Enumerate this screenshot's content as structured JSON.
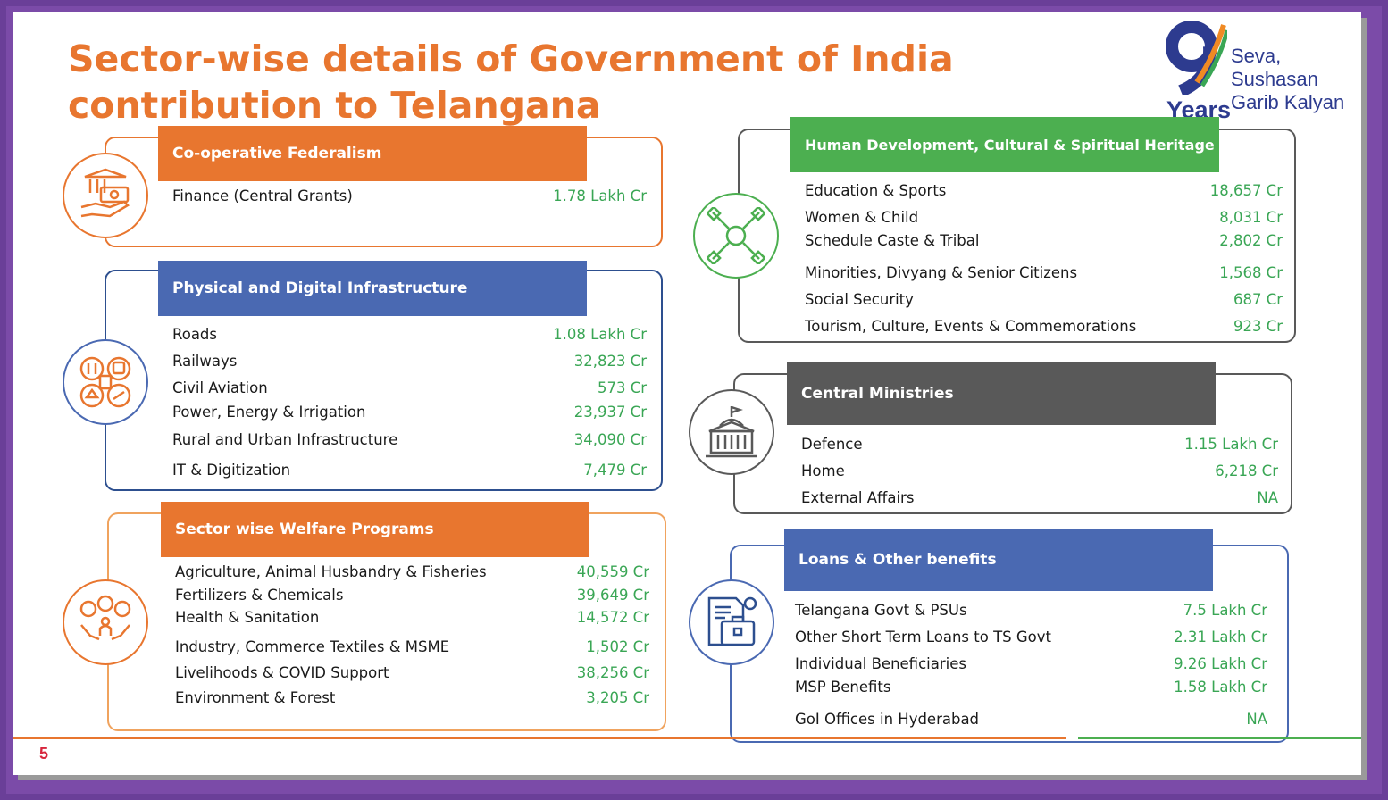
{
  "title": "Sector-wise details of Government of India contribution to Telangana",
  "logo": {
    "number": "9",
    "years": "Years",
    "line1": "Seva, Sushasan",
    "line2": "Garib Kalyan"
  },
  "page_number": "5",
  "colors": {
    "orange": "#e8762f",
    "blue": "#4a69b2",
    "green": "#4caf50",
    "gray": "#595959",
    "value": "#3aa655",
    "frame": "#6a3f98"
  },
  "cooperative": {
    "heading": "Co-operative Federalism",
    "icon": "money-hand-icon",
    "rows": [
      {
        "label": "Finance (Central Grants)",
        "value": "1.78 Lakh Cr"
      }
    ]
  },
  "infrastructure": {
    "heading": "Physical and Digital Infrastructure",
    "icon": "infrastructure-icon",
    "rows": [
      {
        "label": "Roads",
        "value": "1.08 Lakh Cr"
      },
      {
        "label": "Railways",
        "value": "32,823 Cr"
      },
      {
        "label": "Civil Aviation",
        "value": "573 Cr"
      },
      {
        "label": "Power, Energy & Irrigation",
        "value": "23,937 Cr"
      },
      {
        "label": "Rural and Urban Infrastructure",
        "value": "34,090 Cr"
      },
      {
        "label": "IT & Digitization",
        "value": "7,479 Cr"
      }
    ]
  },
  "welfare": {
    "heading": "Sector wise Welfare Programs",
    "icon": "welfare-hands-icon",
    "rows": [
      {
        "label": "Agriculture, Animal Husbandry & Fisheries",
        "value": "40,559 Cr"
      },
      {
        "label": "Fertilizers & Chemicals",
        "value": "39,649 Cr"
      },
      {
        "label": "Health & Sanitation",
        "value": "14,572 Cr"
      },
      {
        "label": "Industry, Commerce Textiles & MSME",
        "value": "1,502 Cr"
      },
      {
        "label": "Livelihoods & COVID Support",
        "value": "38,256 Cr"
      },
      {
        "label": "Environment & Forest",
        "value": "3,205 Cr"
      }
    ]
  },
  "human": {
    "heading": "Human Development, Cultural & Spiritual Heritage",
    "icon": "joined-hands-icon",
    "rows": [
      {
        "label": "Education & Sports",
        "value": "18,657 Cr"
      },
      {
        "label": "Women & Child",
        "value": "8,031 Cr"
      },
      {
        "label": "Schedule Caste & Tribal",
        "value": "2,802 Cr"
      },
      {
        "label": "Minorities, Divyang & Senior Citizens",
        "value": "1,568 Cr"
      },
      {
        "label": "Social Security",
        "value": "687 Cr"
      },
      {
        "label": "Tourism, Culture, Events & Commemorations",
        "value": "923 Cr"
      }
    ]
  },
  "central": {
    "heading": "Central Ministries",
    "icon": "government-building-icon",
    "rows": [
      {
        "label": "Defence",
        "value": "1.15 Lakh Cr"
      },
      {
        "label": "Home",
        "value": "6,218 Cr"
      },
      {
        "label": "External Affairs",
        "value": "NA"
      }
    ]
  },
  "loans": {
    "heading": "Loans & Other benefits",
    "icon": "briefcase-document-icon",
    "rows": [
      {
        "label": "Telangana Govt & PSUs",
        "value": "7.5 Lakh Cr"
      },
      {
        "label": "Other Short Term Loans to TS Govt",
        "value": "2.31 Lakh Cr"
      },
      {
        "label": "Individual Beneficiaries",
        "value": "9.26 Lakh Cr"
      },
      {
        "label": "MSP Benefits",
        "value": "1.58 Lakh Cr"
      },
      {
        "label": "GoI Offices in Hyderabad",
        "value": "NA"
      }
    ]
  }
}
